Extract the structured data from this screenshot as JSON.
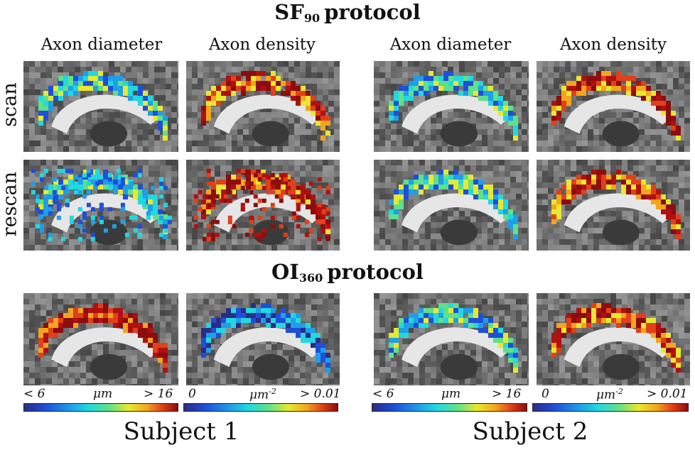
{
  "titles": {
    "sf90": {
      "main": "SF",
      "sub": "90",
      "rest": "protocol"
    },
    "oi360": {
      "main": "OI",
      "sub": "360",
      "rest": "protocol"
    }
  },
  "column_headers": [
    "Axon diameter",
    "Axon density",
    "Axon diameter",
    "Axon density"
  ],
  "row_labels": {
    "scan": "scan",
    "rescan": "rescan"
  },
  "colorbars": {
    "diameter": {
      "min": "< 6",
      "unit": "μm",
      "max": "> 16"
    },
    "density": {
      "min": "0",
      "unit": "μm",
      "unit_exp": "-2",
      "max": "> 0.01"
    }
  },
  "subjects": [
    "Subject 1",
    "Subject 2"
  ],
  "colors": {
    "low": "#2c2c86",
    "mid": "#22d8e0",
    "high": "#8c0d0d"
  }
}
